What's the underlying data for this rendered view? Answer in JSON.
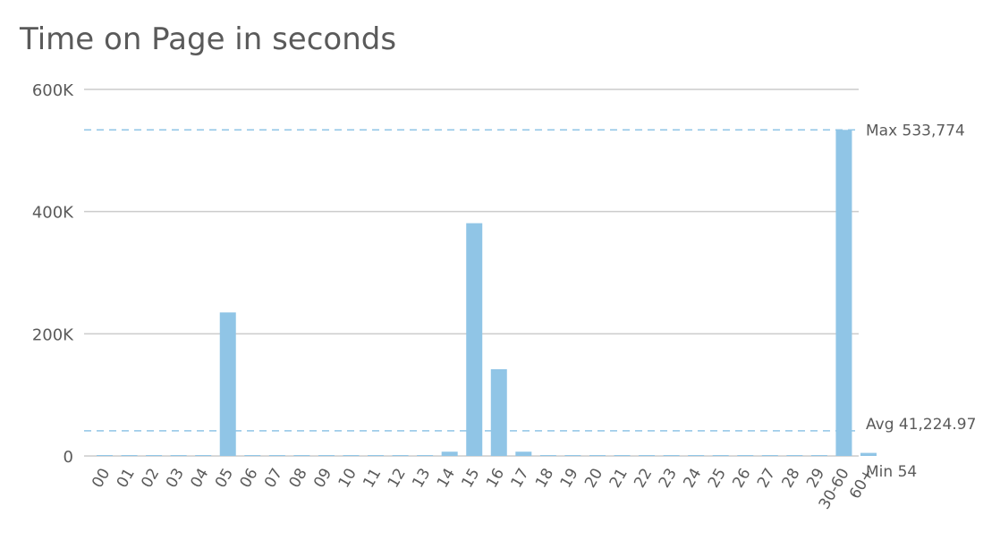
{
  "chart_data": {
    "type": "bar",
    "title": "Time on Page in seconds",
    "xlabel": "",
    "ylabel": "",
    "ylim": [
      0,
      600000
    ],
    "yticks": [
      {
        "value": 0,
        "label": "0"
      },
      {
        "value": 200000,
        "label": "200K"
      },
      {
        "value": 400000,
        "label": "400K"
      },
      {
        "value": 600000,
        "label": "600K"
      }
    ],
    "grid": true,
    "legend": "none",
    "categories": [
      "00",
      "01",
      "02",
      "03",
      "04",
      "05",
      "06",
      "07",
      "08",
      "09",
      "10",
      "11",
      "12",
      "13",
      "14",
      "15",
      "16",
      "17",
      "18",
      "19",
      "20",
      "21",
      "22",
      "23",
      "24",
      "25",
      "26",
      "27",
      "28",
      "29",
      "30-60",
      "60+"
    ],
    "values": [
      54,
      300,
      300,
      300,
      300,
      235000,
      300,
      300,
      300,
      300,
      300,
      300,
      300,
      300,
      7000,
      381000,
      142000,
      7000,
      400,
      300,
      300,
      300,
      300,
      300,
      300,
      300,
      300,
      300,
      300,
      300,
      533774,
      5000
    ],
    "reference_lines": [
      {
        "label": "Max 533,774",
        "value": 533774
      },
      {
        "label": "Avg 41,224.97",
        "value": 41224.97
      },
      {
        "label": "Min 54",
        "value": 54
      }
    ],
    "colors": {
      "bar": "#90c5e6",
      "grid": "#cccccc",
      "reference": "#90c5e6",
      "text": "#5a5a5a"
    }
  }
}
